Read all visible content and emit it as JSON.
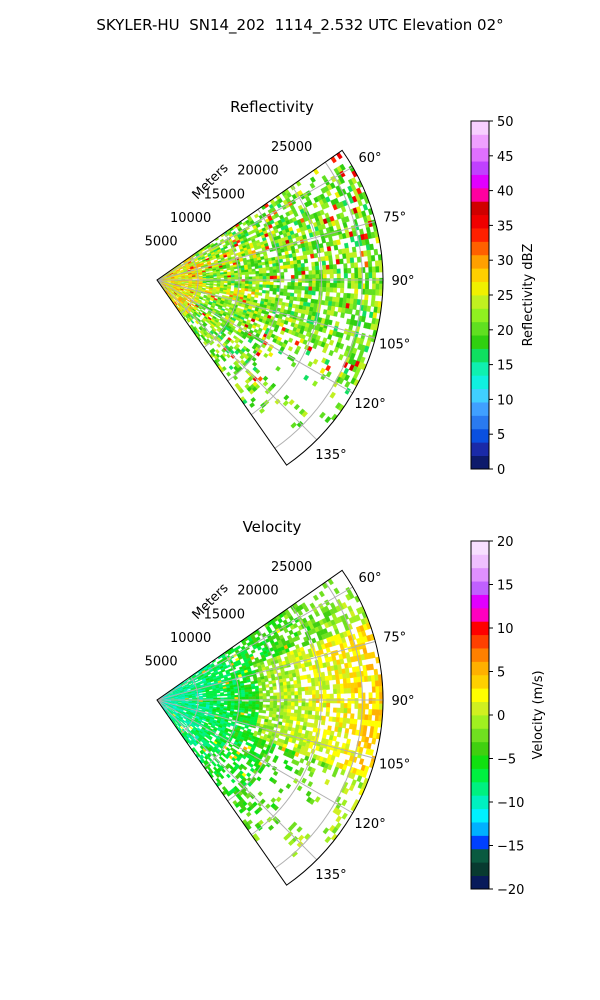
{
  "figure": {
    "title": "SKYLER-HU  SN14_202  1114_2.532 UTC Elevation 02°"
  },
  "colors": {
    "reflectivity_scale": [
      "#0d1a6b",
      "#1a2aa8",
      "#0a50e0",
      "#2a7af0",
      "#40a0ff",
      "#40d0ff",
      "#10f0e0",
      "#10f0b0",
      "#10e060",
      "#30d010",
      "#60e020",
      "#90f020",
      "#c0f020",
      "#f0f000",
      "#ffd000",
      "#ffa000",
      "#ff6000",
      "#ff2000",
      "#f00000",
      "#d00000",
      "#ff00a0",
      "#e000ff",
      "#c040ff",
      "#e070ff",
      "#f0a0ff",
      "#f8d0ff"
    ],
    "velocity_scale": [
      "#081a5a",
      "#083a30",
      "#0a5a40",
      "#0040ff",
      "#00b0ff",
      "#00f0ff",
      "#00f0c0",
      "#00f080",
      "#00f040",
      "#10e010",
      "#40d010",
      "#70e020",
      "#a0f020",
      "#d0f020",
      "#ffff00",
      "#ffd000",
      "#ffb000",
      "#ff8000",
      "#ff4000",
      "#ff0000",
      "#ff00c0",
      "#e000ff",
      "#c060ff",
      "#e090ff",
      "#f0c0ff",
      "#f8e0ff"
    ]
  },
  "chart_data": [
    {
      "type": "heatmap",
      "subtype": "polar-sector",
      "title": "Reflectivity",
      "radial_label": "Meters",
      "radial_ticks": [
        5000,
        10000,
        15000,
        20000,
        25000
      ],
      "radial_tick_labels": [
        "5000",
        "10000",
        "15000",
        "20000",
        "25000"
      ],
      "angle_range_deg": [
        55,
        145
      ],
      "angle_ticks": [
        60,
        75,
        90,
        105,
        120,
        135
      ],
      "angle_tick_labels": [
        "60°",
        "75°",
        "90°",
        "105°",
        "120°",
        "135°"
      ],
      "grid": true,
      "colorbar": {
        "label": "Reflectivity dBZ",
        "range": [
          0,
          50
        ],
        "ticks": [
          0,
          5,
          10,
          15,
          20,
          25,
          30,
          35,
          40,
          45,
          50
        ],
        "tick_labels": [
          "0",
          "5",
          "10",
          "15",
          "20",
          "25",
          "30",
          "35",
          "40",
          "45",
          "50"
        ]
      },
      "dominant_values": "mostly 17–27 dBZ, isolated cores near 30–35 dBZ"
    },
    {
      "type": "heatmap",
      "subtype": "polar-sector",
      "title": "Velocity",
      "radial_label": "Meters",
      "radial_ticks": [
        5000,
        10000,
        15000,
        20000,
        25000
      ],
      "radial_tick_labels": [
        "5000",
        "10000",
        "15000",
        "20000",
        "25000"
      ],
      "angle_range_deg": [
        55,
        145
      ],
      "angle_ticks": [
        60,
        75,
        90,
        105,
        120,
        135
      ],
      "angle_tick_labels": [
        "60°",
        "75°",
        "90°",
        "105°",
        "120°",
        "135°"
      ],
      "grid": true,
      "colorbar": {
        "label": "Velocity (m/s)",
        "range": [
          -20,
          20
        ],
        "ticks": [
          -20,
          -15,
          -10,
          -5,
          0,
          5,
          10,
          15,
          20
        ],
        "tick_labels": [
          "−20",
          "−15",
          "−10",
          "−5",
          "0",
          "5",
          "10",
          "15",
          "20"
        ]
      },
      "dominant_values": "near range about −8 to −10 m/s, far range about −2 to +2 m/s"
    }
  ]
}
